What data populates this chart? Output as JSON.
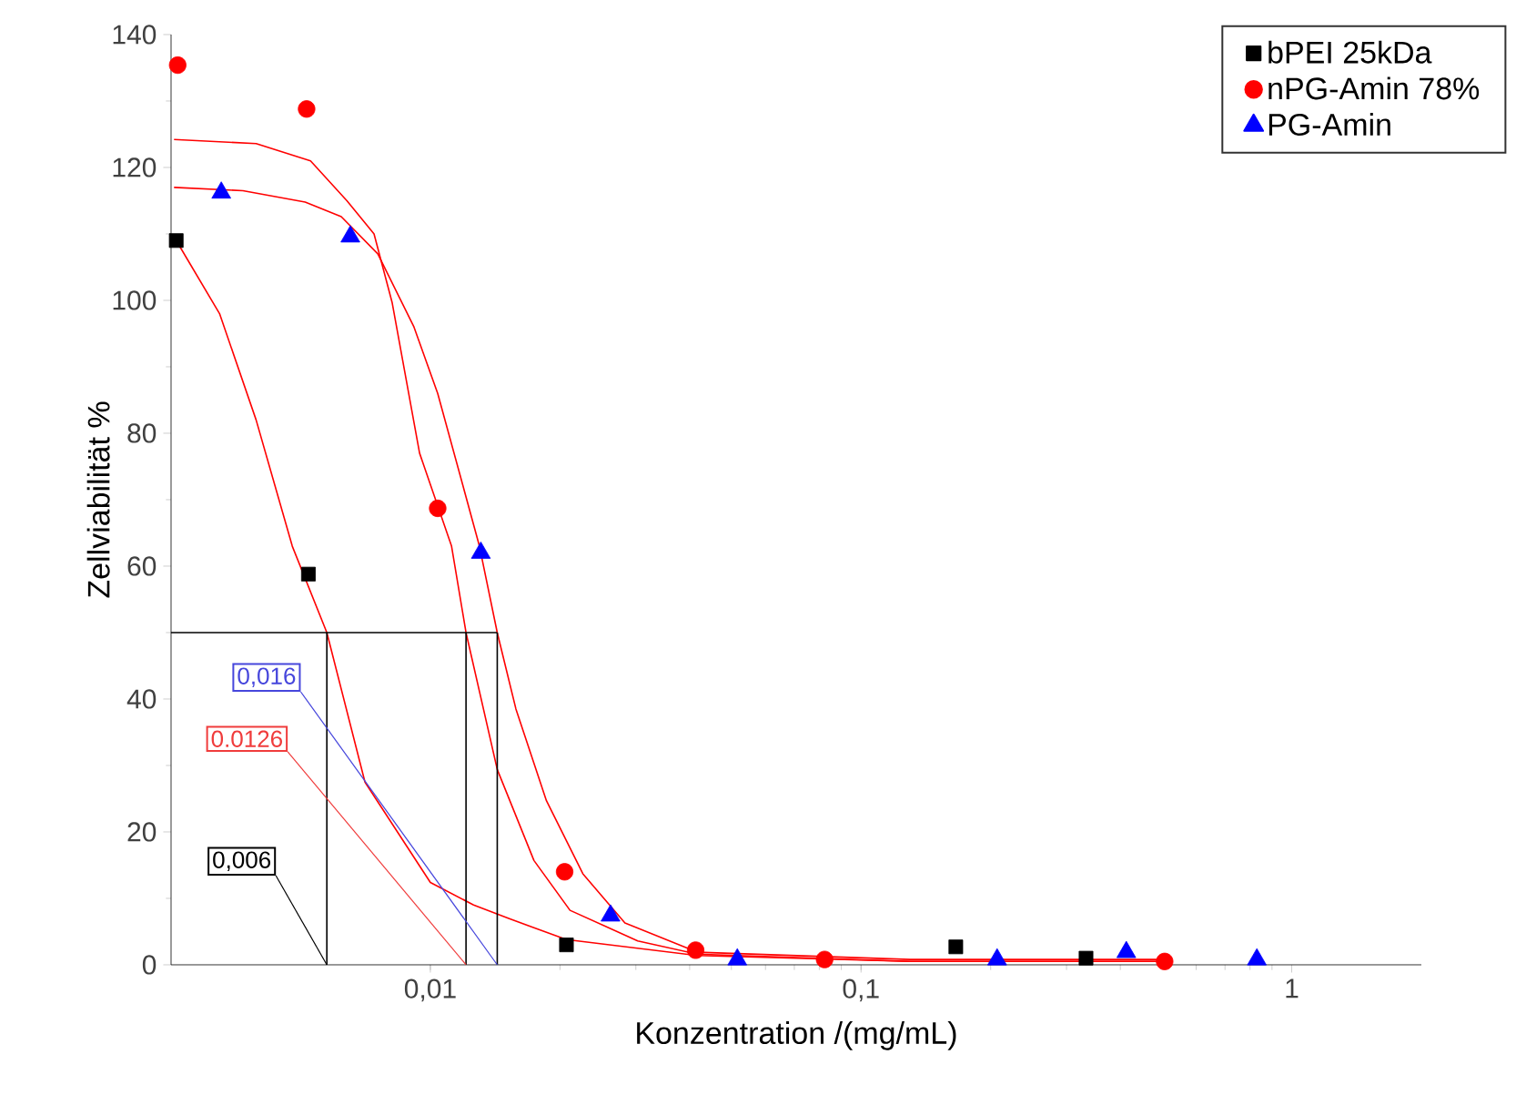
{
  "chart_data": {
    "type": "scatter",
    "xlabel": "Konzentration /(mg/mL)",
    "ylabel": "Zellviabilität %",
    "log": "x",
    "grid": false,
    "legend": "top right",
    "xlim": [
      0.0025,
      2
    ],
    "ylim": [
      0,
      140
    ],
    "xticks": [
      {
        "value": 0.01,
        "label": "0,01"
      },
      {
        "value": 0.1,
        "label": "0,1"
      },
      1
    ],
    "yticks": [
      0,
      20,
      40,
      60,
      80,
      100,
      120,
      140
    ],
    "series": [
      {
        "name": "bPEI 25kDa",
        "color": "#000000",
        "marker": "square",
        "x": [
          0.00257,
          0.00521,
          0.0207,
          0.166,
          0.333
        ],
        "values": [
          109,
          58.8,
          3,
          2.7,
          1
        ]
      },
      {
        "name": "nPG-Amin 78%",
        "color": "#ff0000",
        "marker": "circle",
        "x": [
          0.00259,
          0.00516,
          0.0104,
          0.0205,
          0.0413,
          0.0823,
          0.507
        ],
        "values": [
          135.4,
          128.8,
          68.7,
          14,
          2.2,
          0.8,
          0.5
        ]
      },
      {
        "name": "PG-Amin",
        "color": "#0000ff",
        "marker": "triangle",
        "x": [
          0.00327,
          0.00652,
          0.0131,
          0.0262,
          0.0516,
          0.207,
          0.413,
          0.83
        ],
        "values": [
          116.2,
          109.6,
          62,
          7.4,
          0.8,
          0.8,
          1.9,
          0.8
        ]
      },
      {
        "type": "line",
        "color": "#ff0000",
        "marker": "none",
        "x": [
          0.00257,
          0.00324,
          0.00394,
          0.00478,
          0.00575,
          0.00705,
          0.01,
          0.0126,
          0.0153,
          0.0207,
          0.0417,
          0.13,
          0.52
        ],
        "values": [
          109,
          98,
          82,
          63,
          50,
          27.5,
          12.4,
          9,
          6.9,
          3.8,
          1.4,
          0.5,
          0.5
        ]
      },
      {
        "type": "line",
        "color": "#ff0000",
        "marker": "none",
        "x": [
          0.00254,
          0.00394,
          0.00527,
          0.0064,
          0.0074,
          0.00815,
          0.00944,
          0.0112,
          0.0121,
          0.0143,
          0.0174,
          0.0211,
          0.0303,
          0.0417,
          0.13,
          0.52
        ],
        "values": [
          124.2,
          123.6,
          121,
          115,
          110,
          99.7,
          77,
          63,
          50,
          29.4,
          15.7,
          8.2,
          3.6,
          1.6,
          0.5,
          0.5
        ]
      },
      {
        "type": "line",
        "color": "#ff0000",
        "marker": "none",
        "x": [
          0.00254,
          0.00367,
          0.00512,
          0.00621,
          0.00755,
          0.00916,
          0.0104,
          0.0118,
          0.013,
          0.0143,
          0.0158,
          0.0186,
          0.0226,
          0.0283,
          0.0417,
          0.13,
          0.52
        ],
        "values": [
          117,
          116.5,
          114.8,
          112.6,
          107,
          96,
          86,
          73,
          63,
          50,
          38.5,
          24.7,
          13.7,
          6.3,
          1.9,
          0.8,
          0.8
        ]
      },
      {
        "type": "line",
        "color": "#000000",
        "marker": "none",
        "x": [
          0.0025,
          0.0143
        ],
        "values": [
          50,
          50
        ]
      },
      {
        "type": "line",
        "color": "#000000",
        "marker": "none",
        "x": [
          0.00575,
          0.00575
        ],
        "values": [
          0,
          50
        ]
      },
      {
        "type": "line",
        "color": "#000000",
        "marker": "none",
        "x": [
          0.0121,
          0.0121
        ],
        "values": [
          0,
          50
        ]
      },
      {
        "type": "line",
        "color": "#000000",
        "marker": "none",
        "x": [
          0.0143,
          0.0143
        ],
        "values": [
          0,
          50
        ]
      }
    ],
    "annotations": [
      {
        "text": "0,016",
        "x": 0.0143,
        "y": 0
      },
      {
        "text": "0.0126",
        "x": 0.0121,
        "y": 0
      },
      {
        "text": "0,006",
        "x": 0.00575,
        "y": 0
      }
    ]
  }
}
